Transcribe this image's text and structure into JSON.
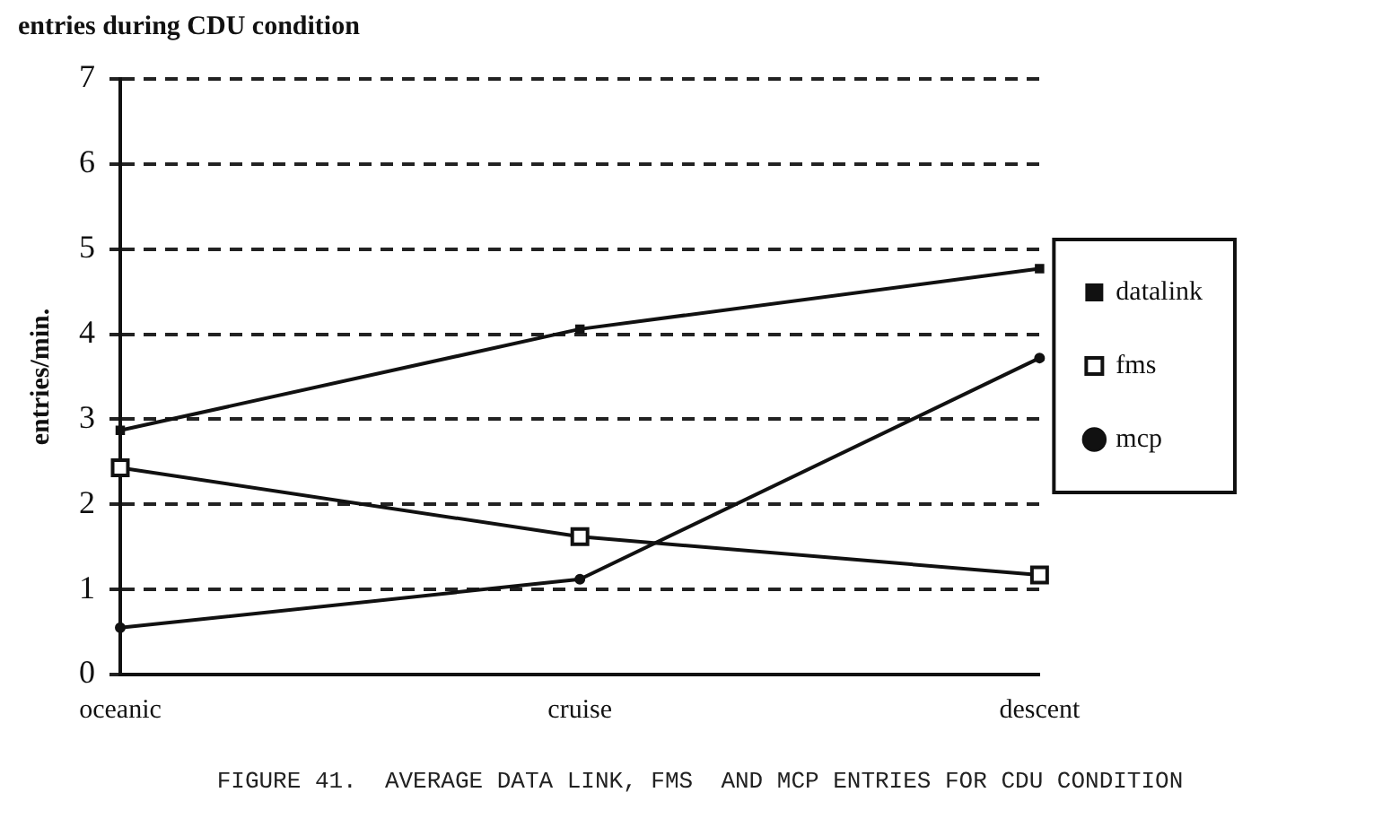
{
  "chart_data": {
    "type": "line",
    "title": "entries during CDU condition",
    "ylabel": "entries/min.",
    "categories": [
      "oceanic",
      "cruise",
      "descent"
    ],
    "series": [
      {
        "name": "datalink",
        "color": "#111111",
        "marker": "square",
        "values": [
          2.87,
          4.06,
          4.77
        ]
      },
      {
        "name": "fms",
        "color": "#111111",
        "marker": "square",
        "values": [
          2.43,
          1.62,
          1.17
        ]
      },
      {
        "name": "mcp",
        "color": "#111111",
        "marker": "circle",
        "values": [
          0.55,
          1.12,
          3.72
        ]
      }
    ],
    "ylim": [
      0,
      7
    ],
    "yticks": [
      0,
      1,
      2,
      3,
      4,
      5,
      6,
      7
    ],
    "grid": "y",
    "legend": "right",
    "line_style": "solid",
    "annotations": [
      "FIGURE 41.  AVERAGE DATA LINK, FMS  AND MCP ENTRIES FOR CDU CONDITION"
    ]
  }
}
